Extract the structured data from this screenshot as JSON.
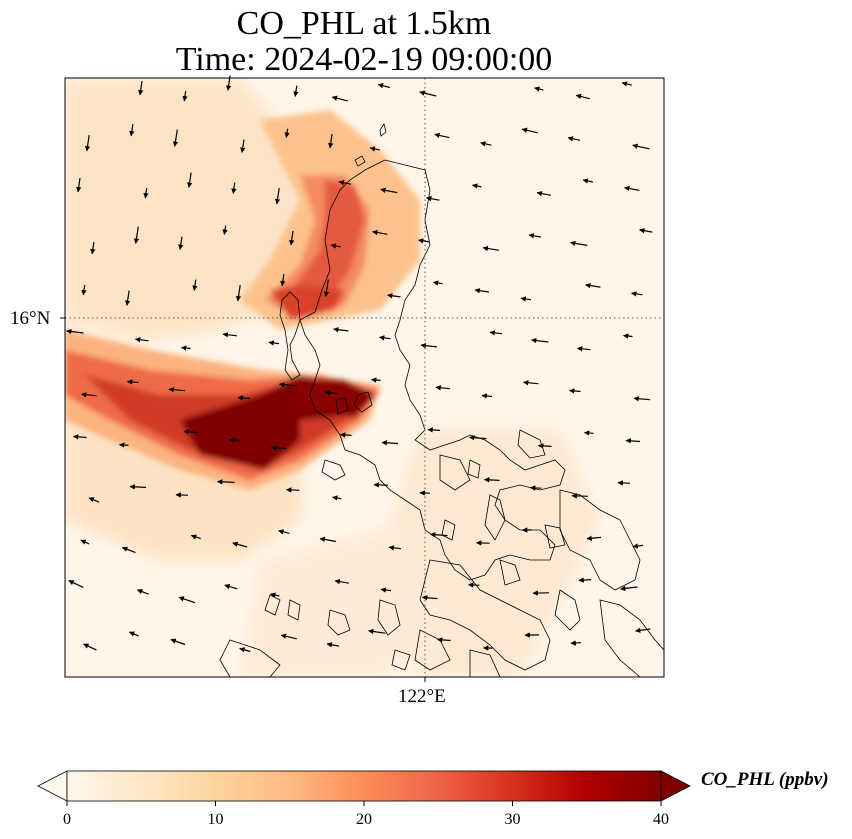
{
  "title": {
    "line1": "CO_PHL at 1.5km",
    "line2": "Time: 2024-02-19 09:00:00"
  },
  "map": {
    "gridlines": "dotted",
    "lat_tick_label": "16°N",
    "lon_tick_label": "122°E",
    "field_variable": "CO_PHL",
    "wind_vectors": "black arrows",
    "coastlines": "black thin lines"
  },
  "colorbar": {
    "label": "CO_PHL (ppbv)",
    "ticks": [
      "0",
      "10",
      "20",
      "30",
      "40"
    ],
    "range": [
      0,
      40
    ],
    "extend": "both",
    "colormap": "OrRd",
    "colors": [
      "#fff7ec",
      "#fee8c8",
      "#fdd49e",
      "#fdbb84",
      "#fc8d59",
      "#ef6548",
      "#d7301f",
      "#b30000",
      "#7f0000"
    ]
  }
}
